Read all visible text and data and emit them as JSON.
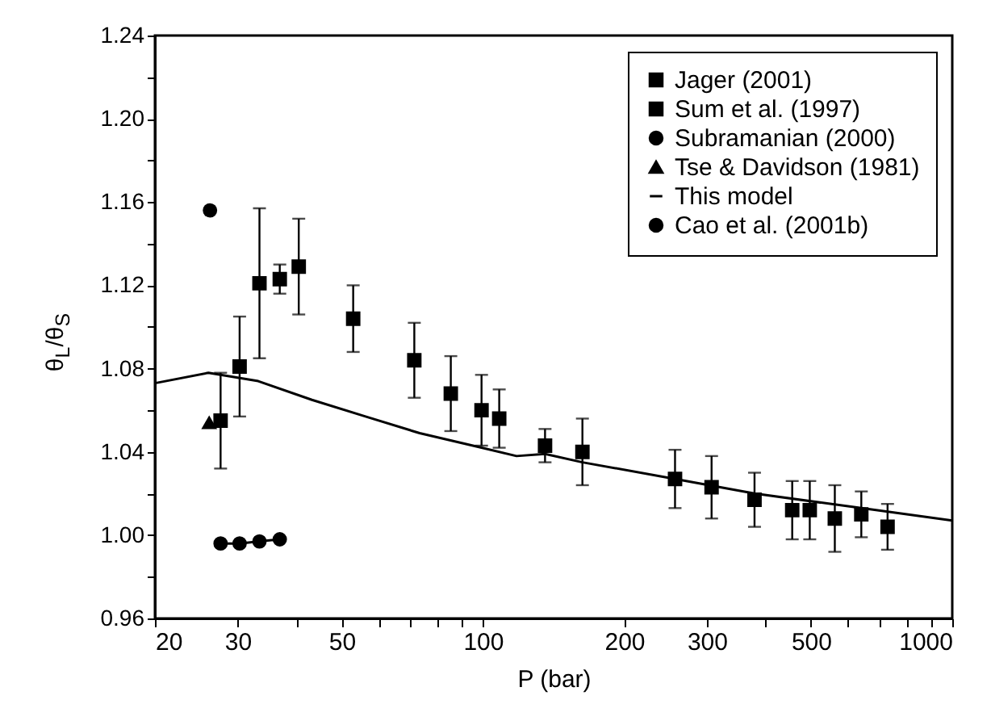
{
  "chart_data": {
    "type": "scatter",
    "xlabel": "P (bar)",
    "ylabel": "θ$_{L}$/θ$_{S}$",
    "log": "x",
    "grid": false,
    "legend": "top right",
    "xlim": [
      20,
      1000
    ],
    "xticks": [
      20,
      30,
      {
        "value": 40,
        "label": null
      },
      50,
      {
        "value": 60,
        "label": null
      },
      {
        "value": 70,
        "label": null
      },
      {
        "value": 80,
        "label": null
      },
      {
        "value": 90,
        "label": null
      },
      100,
      200,
      300,
      {
        "value": 400,
        "label": null
      },
      500,
      {
        "value": 600,
        "label": null
      },
      {
        "value": 700,
        "label": null
      },
      {
        "value": 800,
        "label": null
      },
      {
        "value": 900,
        "label": null
      },
      1000
    ],
    "ylim": [
      0.96,
      1.24
    ],
    "yticks": [
      0.96,
      {
        "value": 0.98,
        "label": null
      },
      {
        "value": 1,
        "label": "1.00"
      },
      {
        "value": 1.02,
        "label": null
      },
      1.04,
      {
        "value": 1.06,
        "label": null
      },
      1.08,
      {
        "value": 1.1,
        "label": null
      },
      1.12,
      {
        "value": 1.14,
        "label": null
      },
      1.16,
      {
        "value": 1.18,
        "label": null
      },
      {
        "value": 1.2,
        "label": "1.20"
      },
      {
        "value": 1.22,
        "label": null
      },
      1.24
    ],
    "series": [
      {
        "name": "Jager (2001)",
        "marker": "square",
        "color": "#000000",
        "x": [
          40.5,
          52.9,
          71.4,
          85.4,
          99.3,
          108.3,
          135.6,
          162.9,
          256.6,
          307,
          379,
          456,
          497,
          562,
          640,
          728
        ],
        "values": [
          1.129,
          1.104,
          1.084,
          1.068,
          1.06,
          1.056,
          1.043,
          1.04,
          1.027,
          1.023,
          1.017,
          1.012,
          1.012,
          1.008,
          1.01,
          1.004
        ],
        "errors": [
          0.023,
          0.016,
          0.018,
          0.018,
          0.017,
          0.014,
          0.008,
          0.016,
          0.014,
          0.015,
          0.013,
          0.014,
          0.014,
          0.016,
          0.011,
          0.011
        ]
      },
      {
        "name": "Sum et al. (1997)",
        "marker": "square",
        "color": "#000000",
        "x": [
          27.6,
          30.3,
          33.4,
          36.9
        ],
        "values": [
          1.055,
          1.081,
          1.121,
          1.123
        ],
        "errors": [
          0.023,
          0.024,
          0.036,
          0.007
        ]
      },
      {
        "name": "Subramanian (2000)",
        "marker": "circle",
        "color": "#000000",
        "x": [
          26.2
        ],
        "values": [
          1.156
        ]
      },
      {
        "name": "Tse & Davidson (1981)",
        "marker": "triangle",
        "color": "#000000",
        "x": [
          26.1
        ],
        "values": [
          1.054
        ]
      },
      {
        "name": "This model",
        "type": "line",
        "marker": "none",
        "color": "#000000",
        "x": [
          20,
          26,
          33.2,
          43.2,
          56.2,
          73.3,
          99.3,
          117.9,
          135.6,
          162.9,
          256.6,
          379,
          640,
          1000
        ],
        "values": [
          1.073,
          1.078,
          1.074,
          1.065,
          1.057,
          1.049,
          1.042,
          1.038,
          1.039,
          1.035,
          1.027,
          1.02,
          1.013,
          1.007
        ]
      },
      {
        "name": "Cao et al. (2001b)",
        "type": "line",
        "marker": "circle",
        "color": "#000000",
        "x": [
          27.6,
          30.3,
          33.4,
          36.9
        ],
        "values": [
          0.996,
          0.996,
          0.997,
          0.998
        ]
      }
    ]
  }
}
